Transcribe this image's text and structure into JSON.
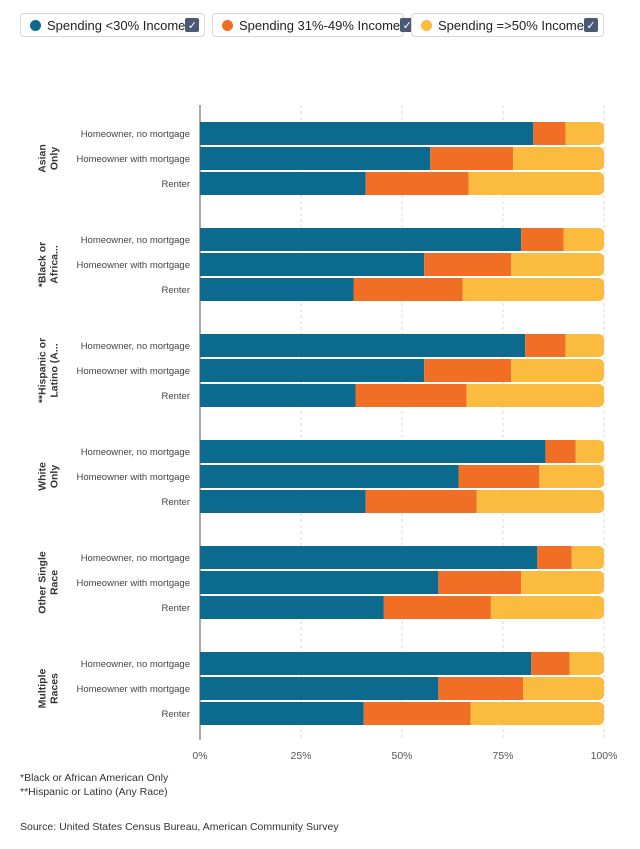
{
  "legend": [
    {
      "label": "Spending <30% Income",
      "color": "#0b6a8e",
      "checked": true,
      "icon": "checkbox-checked-icon"
    },
    {
      "label": "Spending 31%-49% Income",
      "color": "#f06f24",
      "checked": true,
      "icon": "checkbox-checked-icon"
    },
    {
      "label": "Spending =>50% Income",
      "color": "#fbbb3e",
      "checked": true,
      "icon": "checkbox-checked-icon"
    }
  ],
  "chart_data": {
    "type": "bar",
    "orientation": "horizontal",
    "stacked": true,
    "normalized": true,
    "x_ticks": [
      "0%",
      "25%",
      "50%",
      "75%",
      "100%"
    ],
    "xlim": [
      0,
      100
    ],
    "groups": [
      {
        "label": "Asian Only",
        "bars": [
          {
            "label": "Homeowner, no mortgage",
            "values": [
              82.5,
              8.0,
              9.5
            ]
          },
          {
            "label": "Homeowner with mortgage",
            "values": [
              57.0,
              20.5,
              22.5
            ]
          },
          {
            "label": "Renter",
            "values": [
              41.0,
              25.5,
              33.5
            ]
          }
        ]
      },
      {
        "label": "*Black or Africa...",
        "bars": [
          {
            "label": "Homeowner, no mortgage",
            "values": [
              79.5,
              10.5,
              10.0
            ]
          },
          {
            "label": "Homeowner with mortgage",
            "values": [
              55.5,
              21.5,
              23.0
            ]
          },
          {
            "label": "Renter",
            "values": [
              38.0,
              27.0,
              35.0
            ]
          }
        ]
      },
      {
        "label": "**Hispanic or Latino (A...",
        "bars": [
          {
            "label": "Homeowner, no mortgage",
            "values": [
              80.5,
              10.0,
              9.5
            ]
          },
          {
            "label": "Homeowner with mortgage",
            "values": [
              55.5,
              21.5,
              23.0
            ]
          },
          {
            "label": "Renter",
            "values": [
              38.5,
              27.5,
              34.0
            ]
          }
        ]
      },
      {
        "label": "White Only",
        "bars": [
          {
            "label": "Homeowner, no mortgage",
            "values": [
              85.5,
              7.5,
              7.0
            ]
          },
          {
            "label": "Homeowner with mortgage",
            "values": [
              64.0,
              20.0,
              16.0
            ]
          },
          {
            "label": "Renter",
            "values": [
              41.0,
              27.5,
              31.5
            ]
          }
        ]
      },
      {
        "label": "Other Single Race",
        "bars": [
          {
            "label": "Homeowner, no mortgage",
            "values": [
              83.5,
              8.5,
              8.0
            ]
          },
          {
            "label": "Homeowner with mortgage",
            "values": [
              59.0,
              20.5,
              20.5
            ]
          },
          {
            "label": "Renter",
            "values": [
              45.5,
              26.5,
              28.0
            ]
          }
        ]
      },
      {
        "label": "Multiple Races",
        "bars": [
          {
            "label": "Homeowner, no mortgage",
            "values": [
              82.0,
              9.5,
              8.5
            ]
          },
          {
            "label": "Homeowner with mortgage",
            "values": [
              59.0,
              21.0,
              20.0
            ]
          },
          {
            "label": "Renter",
            "values": [
              40.5,
              26.5,
              33.0
            ]
          }
        ]
      }
    ]
  },
  "footnotes": {
    "black": "*Black or African American Only",
    "hispanic": "**Hispanic or Latino (Any Race)"
  },
  "source": "Source: United States Census Bureau, American Community Survey"
}
